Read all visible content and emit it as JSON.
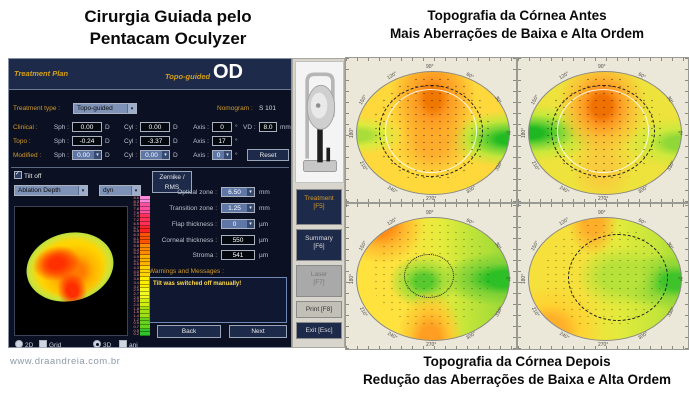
{
  "page": {
    "title_top_left_line1": "Cirurgia  Guiada pelo",
    "title_top_left_line2": "Pentacam Oculyzer",
    "title_top_right_line1": "Topografia da Córnea Antes",
    "title_top_right_line2": "Mais Aberrações de Baixa e Alta Ordem",
    "title_bottom_right_line1": "Topografia da Córnea Depois",
    "title_bottom_right_line2": "Redução das Aberrações de Baixa e Alta Ordem",
    "website": "www.draandreia.com.br"
  },
  "window": {
    "title": "Treatment Plan",
    "mode": "Topo-guided",
    "eye": "OD",
    "treatment_type_label": "Treatment type :",
    "treatment_type_value": "Topo-guided",
    "nomogram_label": "Nomogram :",
    "nomogram_value": "S 101",
    "col_labels": {
      "sph": "Sph :",
      "cyl": "Cyl :",
      "axis": "Axis :",
      "vd": "VD :"
    },
    "units": {
      "diopter": "D",
      "degree": "°",
      "mm": "mm",
      "um": "µm"
    },
    "rows": [
      {
        "label": "Clinical :",
        "sph": "0.00",
        "cyl": "0.00",
        "axis": "0",
        "vd": "8.0"
      },
      {
        "label": "Topo :",
        "sph": "-0.24",
        "cyl": "-3.37",
        "axis": "17"
      },
      {
        "label": "Modified :",
        "sph": "0.00",
        "cyl": "0.00",
        "axis": "0"
      }
    ],
    "reset_button": "Reset",
    "tilt_checkbox": "Tilt off",
    "ablation_dropdown": "Ablation Depth",
    "dyn_dropdown": "dyn",
    "zernike_button": "Zernike / RMS",
    "fields": [
      {
        "label": "Optical zone :",
        "value": "6.50",
        "unit": "mm"
      },
      {
        "label": "Transition zone :",
        "value": "1.25",
        "unit": "mm"
      },
      {
        "label": "Flap thickness :",
        "value": "0",
        "unit": "µm"
      },
      {
        "label": "Corneal thickness :",
        "value": "550",
        "unit": "µm"
      },
      {
        "label": "Stroma :",
        "value": "541",
        "unit": "µm"
      }
    ],
    "warnings_label": "Warnings and Messages :",
    "warning_message": "Tilt was switched off manually!",
    "back_button": "Back",
    "next_button": "Next",
    "view_options": [
      "2D",
      "Grid",
      "3D",
      "ani"
    ],
    "scale_labels": [
      "8.6",
      "8.3",
      "8.1",
      "7.8",
      "7.6",
      "7.4",
      "7.2",
      "6.9",
      "6.7",
      "6.5",
      "6.3",
      "6.1",
      "5.8",
      "5.6",
      "5.4",
      "5.2",
      "4.9",
      "4.7",
      "4.5",
      "4.3",
      "4.0",
      "3.8",
      "3.6",
      "3.4",
      "3.2",
      "2.9",
      "2.7",
      "2.5",
      "2.3",
      "2.0",
      "1.8",
      "1.6",
      "1.4",
      "1.2",
      "0.9",
      "0.7",
      "0.5",
      "0.2"
    ]
  },
  "sidebar": {
    "buttons": [
      {
        "label": "Treatment",
        "key": "[F5]"
      },
      {
        "label": "Summary",
        "key": "[F6]"
      },
      {
        "label": "Laser",
        "key": "[F7]"
      },
      {
        "label": "Print [F8]",
        "key": ""
      },
      {
        "label": "Exit [Esc]",
        "key": ""
      }
    ]
  },
  "chart_data": {
    "type": "heatmap",
    "description": "Four corneal topography elevation/curvature maps (2x2). Top row: before surgery; bottom row: after surgery. Warm colors = steeper/higher, green = flatter/lower.",
    "angle_ticks": [
      "90°",
      "60°",
      "30°",
      "0°",
      "330°",
      "300°",
      "270°",
      "240°",
      "210°",
      "180°",
      "150°",
      "120°"
    ],
    "maps": [
      {
        "position": "top-left",
        "group": "before",
        "pattern": "yellow-orange dominant; strong orange steep zone upper-center and center; strong green flat zone on right edge, mild green left edge; black dashed reference ring with inner white ring; dense dot grid"
      },
      {
        "position": "top-right",
        "group": "before",
        "pattern": "yellow-green base; orange steep zone top-center; strong green flat zone on left edge, moderate green right edge; black dashed reference ring with inner white ring; dense dot grid"
      },
      {
        "position": "bottom-left",
        "group": "after",
        "pattern": "smoother yellow-green; central-right green flat zone; mild orange at top-left and bottom edges; small dotted center ring; sparse dot grid"
      },
      {
        "position": "bottom-right",
        "group": "after",
        "pattern": "smoother yellow-green; green right half; mild orange top and lower-left; dashed reference ring offset right; sparse dot grid"
      }
    ],
    "color_scale": {
      "labels_top_to_bottom": [
        "8.6",
        "8.3",
        "8.1",
        "7.8",
        "7.6",
        "7.4",
        "7.2",
        "6.9",
        "6.7",
        "6.5",
        "6.3",
        "6.1",
        "5.8",
        "5.6",
        "5.4",
        "5.2",
        "4.9",
        "4.7",
        "4.5",
        "4.3",
        "4.0",
        "3.8",
        "3.6",
        "3.4",
        "3.2",
        "2.9",
        "2.7",
        "2.5",
        "2.3",
        "2.0",
        "1.8",
        "1.6",
        "1.4",
        "1.2",
        "0.9",
        "0.7",
        "0.5",
        "0.2"
      ],
      "legend_position": "left window, right of 3D ablation preview"
    }
  }
}
